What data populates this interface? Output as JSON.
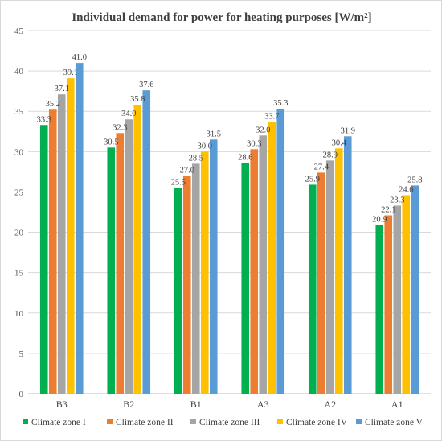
{
  "chart_data": {
    "type": "bar",
    "title": "Individual demand for power for heating purposes [W/m²]",
    "categories": [
      "B3",
      "B2",
      "B1",
      "A3",
      "A2",
      "A1"
    ],
    "series": [
      {
        "name": "Climate zone I",
        "color": "#00b050",
        "values": [
          33.3,
          30.5,
          25.5,
          28.6,
          25.9,
          20.9
        ]
      },
      {
        "name": "Climate zone II",
        "color": "#ed7d31",
        "values": [
          35.2,
          32.3,
          27.0,
          30.3,
          27.4,
          22.1
        ]
      },
      {
        "name": "Climate zone III",
        "color": "#a5a5a5",
        "values": [
          37.1,
          34.0,
          28.5,
          32.0,
          28.9,
          23.3
        ]
      },
      {
        "name": "Climate zone IV",
        "color": "#ffc000",
        "values": [
          39.1,
          35.8,
          30.0,
          33.7,
          30.4,
          24.6
        ]
      },
      {
        "name": "Climate zone V",
        "color": "#5b9bd5",
        "values": [
          41.0,
          37.6,
          31.5,
          35.3,
          31.9,
          25.8
        ]
      }
    ],
    "ylim": [
      0,
      45
    ],
    "yticks": [
      0,
      5,
      10,
      15,
      20,
      25,
      30,
      35,
      40,
      45
    ],
    "grid": true,
    "legend_position": "bottom"
  }
}
